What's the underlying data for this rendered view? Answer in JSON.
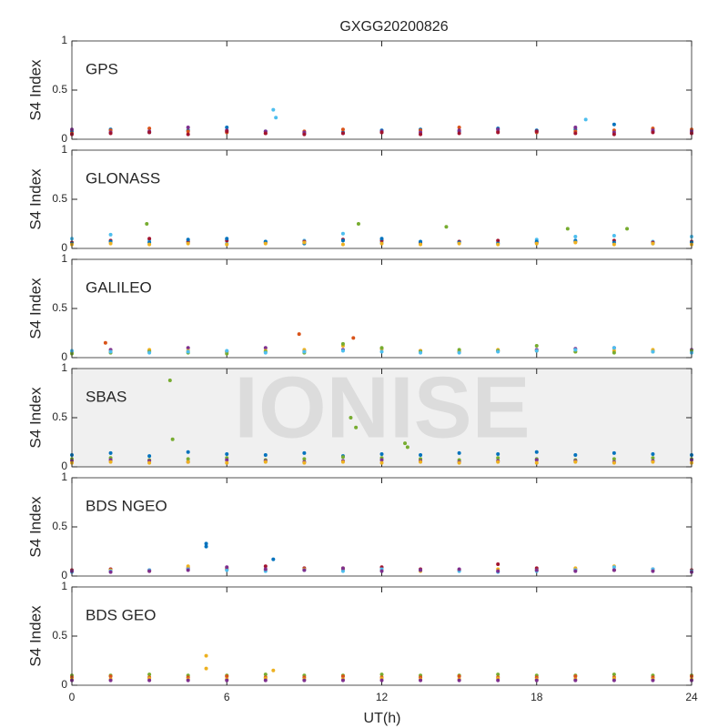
{
  "title": "GXGG20200826",
  "xlabel": "UT(h)",
  "watermark": "IONISE",
  "chart_data": [
    {
      "type": "scatter",
      "label": "GPS",
      "ylabel": "S4 Index",
      "background": "#ffffff",
      "xlim": [
        0,
        24
      ],
      "xticks": [
        0,
        6,
        12,
        18,
        24
      ],
      "ylim": [
        0,
        1
      ],
      "yticks": [
        0,
        0.5,
        1
      ],
      "x": [
        0,
        1.5,
        3,
        4.5,
        6,
        7.5,
        9,
        10.5,
        12,
        13.5,
        15,
        16.5,
        18,
        19.5,
        21,
        22.5,
        24
      ],
      "series": [
        {
          "color": "#0072BD",
          "values": [
            0.08,
            0.1,
            0.07,
            0.09,
            0.12,
            0.08,
            0.06,
            0.07,
            0.09,
            0.1,
            0.08,
            0.11,
            0.09,
            0.1,
            0.15,
            0.08,
            0.09
          ]
        },
        {
          "color": "#D95319",
          "values": [
            0.06,
            0.09,
            0.11,
            0.08,
            0.07,
            0.06,
            0.08,
            0.1,
            0.07,
            0.09,
            0.12,
            0.08,
            0.07,
            0.08,
            0.09,
            0.11,
            0.1
          ]
        },
        {
          "color": "#7E2F8E",
          "values": [
            0.1,
            0.07,
            0.08,
            0.12,
            0.09,
            0.08,
            0.07,
            0.06,
            0.08,
            0.07,
            0.09,
            0.1,
            0.08,
            0.12,
            0.07,
            0.09,
            0.08
          ]
        },
        {
          "color": "#A2142F",
          "values": [
            0.05,
            0.06,
            0.07,
            0.05,
            0.08,
            0.06,
            0.05,
            0.06,
            0.07,
            0.05,
            0.06,
            0.07,
            0.08,
            0.06,
            0.05,
            0.07,
            0.06
          ]
        },
        {
          "color": "#4DBEEE",
          "x": [
            7.8,
            7.9,
            19.9
          ],
          "values": [
            0.3,
            0.22,
            0.2
          ]
        }
      ]
    },
    {
      "type": "scatter",
      "label": "GLONASS",
      "ylabel": "S4 Index",
      "background": "#ffffff",
      "xlim": [
        0,
        24
      ],
      "xticks": [
        0,
        6,
        12,
        18,
        24
      ],
      "ylim": [
        0,
        1
      ],
      "yticks": [
        0,
        0.5,
        1
      ],
      "x": [
        0,
        1.5,
        3,
        4.5,
        6,
        7.5,
        9,
        10.5,
        12,
        13.5,
        15,
        16.5,
        18,
        19.5,
        21,
        22.5,
        24
      ],
      "series": [
        {
          "color": "#4DBEEE",
          "values": [
            0.1,
            0.14,
            0.08,
            0.06,
            0.05,
            0.07,
            0.08,
            0.15,
            0.06,
            0.05,
            0.07,
            0.06,
            0.09,
            0.12,
            0.13,
            0.07,
            0.12
          ]
        },
        {
          "color": "#A2142F",
          "values": [
            0.06,
            0.08,
            0.1,
            0.07,
            0.08,
            0.06,
            0.07,
            0.09,
            0.08,
            0.06,
            0.07,
            0.08,
            0.06,
            0.07,
            0.08,
            0.06,
            0.07
          ]
        },
        {
          "color": "#0072BD",
          "values": [
            0.05,
            0.07,
            0.06,
            0.09,
            0.1,
            0.07,
            0.05,
            0.08,
            0.1,
            0.07,
            0.06,
            0.05,
            0.07,
            0.08,
            0.06,
            0.05,
            0.06
          ]
        },
        {
          "color": "#EDB120",
          "values": [
            0.04,
            0.05,
            0.04,
            0.05,
            0.04,
            0.05,
            0.06,
            0.04,
            0.05,
            0.04,
            0.05,
            0.04,
            0.05,
            0.06,
            0.04,
            0.05,
            0.04
          ]
        },
        {
          "color": "#77AC30",
          "x": [
            2.9,
            11.1,
            14.5,
            19.2,
            21.5
          ],
          "values": [
            0.25,
            0.25,
            0.22,
            0.2,
            0.2
          ]
        }
      ]
    },
    {
      "type": "scatter",
      "label": "GALILEO",
      "ylabel": "S4 Index",
      "background": "#ffffff",
      "xlim": [
        0,
        24
      ],
      "xticks": [
        0,
        6,
        12,
        18,
        24
      ],
      "ylim": [
        0,
        1
      ],
      "yticks": [
        0,
        0.5,
        1
      ],
      "x": [
        0,
        1.5,
        3,
        4.5,
        6,
        7.5,
        9,
        10.5,
        12,
        13.5,
        15,
        16.5,
        18,
        19.5,
        21,
        22.5,
        24
      ],
      "series": [
        {
          "color": "#7E2F8E",
          "values": [
            0.06,
            0.08,
            0.07,
            0.1,
            0.06,
            0.1,
            0.07,
            0.08,
            0.09,
            0.07,
            0.06,
            0.07,
            0.08,
            0.09,
            0.1,
            0.07,
            0.08
          ]
        },
        {
          "color": "#EDB120",
          "values": [
            0.05,
            0.06,
            0.08,
            0.07,
            0.06,
            0.07,
            0.08,
            0.12,
            0.09,
            0.07,
            0.06,
            0.08,
            0.07,
            0.06,
            0.07,
            0.08,
            0.06
          ]
        },
        {
          "color": "#77AC30",
          "values": [
            0.04,
            0.05,
            0.06,
            0.05,
            0.04,
            0.06,
            0.05,
            0.14,
            0.1,
            0.06,
            0.08,
            0.07,
            0.12,
            0.06,
            0.05,
            0.06,
            0.07
          ]
        },
        {
          "color": "#4DBEEE",
          "values": [
            0.07,
            0.06,
            0.05,
            0.06,
            0.07,
            0.05,
            0.06,
            0.07,
            0.06,
            0.05,
            0.05,
            0.06,
            0.07,
            0.08,
            0.1,
            0.06,
            0.05
          ]
        },
        {
          "color": "#D95319",
          "x": [
            1.3,
            8.8,
            10.9
          ],
          "values": [
            0.15,
            0.24,
            0.2
          ]
        }
      ]
    },
    {
      "type": "scatter",
      "label": "SBAS",
      "ylabel": "S4 Index",
      "background": "#f0f0f0",
      "xlim": [
        0,
        24
      ],
      "xticks": [
        0,
        6,
        12,
        18,
        24
      ],
      "ylim": [
        0,
        1
      ],
      "yticks": [
        0,
        0.5,
        1
      ],
      "x": [
        0,
        1.5,
        3,
        4.5,
        6,
        7.5,
        9,
        10.5,
        12,
        13.5,
        15,
        16.5,
        18,
        19.5,
        21,
        22.5,
        24
      ],
      "series": [
        {
          "color": "#0072BD",
          "values": [
            0.12,
            0.14,
            0.11,
            0.15,
            0.13,
            0.12,
            0.14,
            0.11,
            0.13,
            0.12,
            0.14,
            0.13,
            0.15,
            0.12,
            0.14,
            0.13,
            0.12
          ]
        },
        {
          "color": "#77AC30",
          "values": [
            0.08,
            0.09,
            0.07,
            0.08,
            0.09,
            0.07,
            0.08,
            0.1,
            0.09,
            0.08,
            0.07,
            0.09,
            0.08,
            0.07,
            0.08,
            0.09,
            0.08
          ]
        },
        {
          "color": "#7E2F8E",
          "values": [
            0.06,
            0.07,
            0.06,
            0.05,
            0.07,
            0.06,
            0.05,
            0.06,
            0.07,
            0.06,
            0.05,
            0.06,
            0.07,
            0.06,
            0.05,
            0.06,
            0.07
          ]
        },
        {
          "color": "#EDB120",
          "values": [
            0.04,
            0.05,
            0.04,
            0.05,
            0.04,
            0.05,
            0.04,
            0.05,
            0.04,
            0.05,
            0.04,
            0.05,
            0.04,
            0.05,
            0.04,
            0.05,
            0.04
          ]
        },
        {
          "color": "#77AC30",
          "x": [
            3.8,
            3.9,
            10.8,
            11.0,
            12.9,
            13.0
          ],
          "values": [
            0.88,
            0.28,
            0.5,
            0.4,
            0.24,
            0.2
          ]
        }
      ]
    },
    {
      "type": "scatter",
      "label": "BDS NGEO",
      "ylabel": "S4 Index",
      "background": "#ffffff",
      "xlim": [
        0,
        24
      ],
      "xticks": [
        0,
        6,
        12,
        18,
        24
      ],
      "ylim": [
        0,
        1
      ],
      "yticks": [
        0,
        0.5,
        1
      ],
      "x": [
        0,
        1.5,
        3,
        4.5,
        6,
        7.5,
        9,
        10.5,
        12,
        13.5,
        15,
        16.5,
        18,
        19.5,
        21,
        22.5,
        24
      ],
      "series": [
        {
          "color": "#A2142F",
          "values": [
            0.06,
            0.07,
            0.06,
            0.08,
            0.07,
            0.1,
            0.08,
            0.07,
            0.09,
            0.07,
            0.06,
            0.12,
            0.08,
            0.07,
            0.06,
            0.07,
            0.06
          ]
        },
        {
          "color": "#EDB120",
          "values": [
            0.05,
            0.06,
            0.05,
            0.1,
            0.08,
            0.06,
            0.07,
            0.08,
            0.06,
            0.05,
            0.06,
            0.07,
            0.06,
            0.08,
            0.1,
            0.06,
            0.05
          ]
        },
        {
          "color": "#4DBEEE",
          "values": [
            0.04,
            0.05,
            0.06,
            0.07,
            0.06,
            0.05,
            0.06,
            0.05,
            0.07,
            0.06,
            0.05,
            0.04,
            0.05,
            0.06,
            0.09,
            0.07,
            0.05
          ]
        },
        {
          "color": "#7E2F8E",
          "values": [
            0.05,
            0.04,
            0.05,
            0.06,
            0.09,
            0.07,
            0.06,
            0.08,
            0.05,
            0.06,
            0.07,
            0.05,
            0.06,
            0.05,
            0.06,
            0.05,
            0.04
          ]
        },
        {
          "color": "#0072BD",
          "x": [
            5.2,
            5.2,
            7.8
          ],
          "values": [
            0.33,
            0.3,
            0.17
          ]
        }
      ]
    },
    {
      "type": "scatter",
      "label": "BDS GEO",
      "ylabel": "S4 Index",
      "background": "#ffffff",
      "xlim": [
        0,
        24
      ],
      "xticks": [
        0,
        6,
        12,
        18,
        24
      ],
      "ylim": [
        0,
        1
      ],
      "yticks": [
        0,
        0.5,
        1
      ],
      "x": [
        0,
        1.5,
        3,
        4.5,
        6,
        7.5,
        9,
        10.5,
        12,
        13.5,
        15,
        16.5,
        18,
        19.5,
        21,
        22.5,
        24
      ],
      "series": [
        {
          "color": "#77AC30",
          "values": [
            0.1,
            0.1,
            0.11,
            0.1,
            0.1,
            0.11,
            0.1,
            0.1,
            0.11,
            0.1,
            0.1,
            0.11,
            0.1,
            0.1,
            0.11,
            0.1,
            0.1
          ]
        },
        {
          "color": "#D95319",
          "values": [
            0.08,
            0.09,
            0.08,
            0.08,
            0.09,
            0.08,
            0.08,
            0.09,
            0.08,
            0.08,
            0.09,
            0.08,
            0.08,
            0.09,
            0.08,
            0.08,
            0.09
          ]
        },
        {
          "color": "#EDB120",
          "values": [
            0.06,
            0.06,
            0.07,
            0.06,
            0.06,
            0.07,
            0.06,
            0.06,
            0.07,
            0.06,
            0.06,
            0.07,
            0.06,
            0.06,
            0.07,
            0.06,
            0.06
          ]
        },
        {
          "color": "#7E2F8E",
          "values": [
            0.05,
            0.05,
            0.05,
            0.05,
            0.05,
            0.05,
            0.05,
            0.05,
            0.05,
            0.05,
            0.05,
            0.05,
            0.05,
            0.05,
            0.05,
            0.05,
            0.05
          ]
        },
        {
          "color": "#EDB120",
          "x": [
            5.2,
            5.2,
            7.8
          ],
          "values": [
            0.3,
            0.17,
            0.15
          ]
        }
      ]
    }
  ]
}
